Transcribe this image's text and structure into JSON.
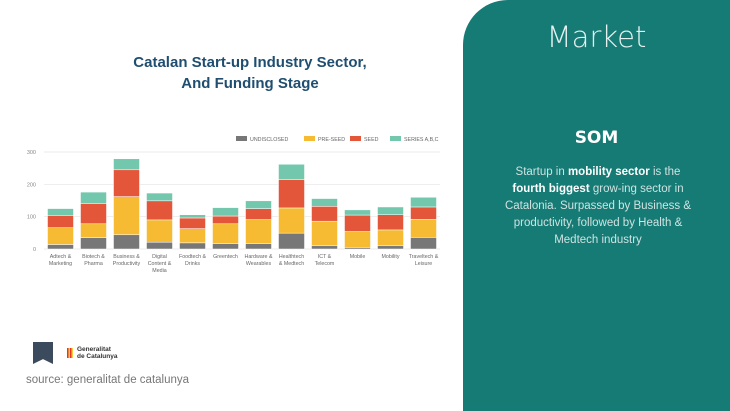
{
  "chart_data": {
    "type": "bar",
    "stacked": true,
    "title": "Catalan Start-up Industry Sector, And Funding Stage",
    "title_lines": [
      "Catalan Start-up Industry Sector,",
      "And Funding Stage"
    ],
    "categories": [
      [
        "Adtech &",
        "Marketing"
      ],
      [
        "Biotech &",
        "Pharma"
      ],
      [
        "Business &",
        "Productivity"
      ],
      [
        "Digital",
        "Content &",
        "Media"
      ],
      [
        "Foodtech &",
        "Drinks"
      ],
      [
        "Greentech"
      ],
      [
        "Hardware &",
        "Wearables"
      ],
      [
        "Healthtech",
        "& Medtech"
      ],
      [
        "ICT &",
        "Telecom"
      ],
      [
        "Mobile"
      ],
      [
        "Mobility"
      ],
      [
        "Traveltech &",
        "Leisure"
      ]
    ],
    "series": [
      {
        "name": "UNDISCLOSED",
        "color": "#777777",
        "values": [
          14,
          35,
          44,
          21,
          19,
          17,
          17,
          49,
          10,
          5,
          10,
          36
        ]
      },
      {
        "name": "PRE-SEED",
        "color": "#f6bb33",
        "values": [
          52,
          43,
          118,
          69,
          44,
          61,
          74,
          78,
          76,
          49,
          49,
          56
        ]
      },
      {
        "name": "SEED",
        "color": "#e4563a",
        "values": [
          38,
          63,
          83,
          59,
          33,
          24,
          34,
          88,
          46,
          51,
          47,
          38
        ]
      },
      {
        "name": "SERIES A,B,C",
        "color": "#72c7ad",
        "values": [
          21,
          35,
          34,
          24,
          10,
          26,
          24,
          47,
          24,
          16,
          24,
          30
        ]
      }
    ],
    "yticks": [
      "0",
      "100",
      "200",
      "300"
    ],
    "ylim": [
      0,
      300
    ],
    "grid": true,
    "legend": "top-right"
  },
  "panel": {
    "heading": "Market",
    "subheading": "SOM",
    "text_parts": [
      "Startup in ",
      "mobility sector",
      " is  the ",
      "fourth biggest",
      " grow-ing sector in Catalonia. Surpassed by Business & productivity, followed by Health & Medtech industry"
    ]
  },
  "logos": {
    "generalitat": [
      "Generalitat",
      "de Catalunya"
    ]
  },
  "source": "source: generalitat de catalunya"
}
